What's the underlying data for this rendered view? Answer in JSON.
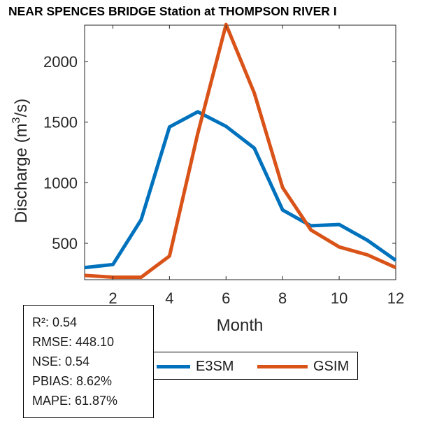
{
  "chart_data": {
    "type": "line",
    "title": "NEAR SPENCES BRIDGE  Station at  THOMPSON RIVER  I",
    "xlabel": "Month",
    "ylabel_main": "Discharge (m",
    "ylabel_sup": "3",
    "ylabel_tail": "/s)",
    "xlim": [
      1,
      12
    ],
    "ylim": [
      200,
      2300
    ],
    "xticks": [
      2,
      4,
      6,
      8,
      10,
      12
    ],
    "yticks": [
      500,
      1000,
      1500,
      2000
    ],
    "x": [
      1,
      2,
      3,
      4,
      5,
      6,
      7,
      8,
      9,
      10,
      11,
      12
    ],
    "series": [
      {
        "name": "E3SM",
        "color": "#0072BD",
        "values": [
          300,
          325,
          695,
          1460,
          1585,
          1465,
          1285,
          775,
          645,
          655,
          525,
          360
        ]
      },
      {
        "name": "GSIM",
        "color": "#D95319",
        "values": [
          235,
          220,
          220,
          395,
          1405,
          2305,
          1740,
          960,
          610,
          470,
          405,
          300
        ]
      }
    ],
    "grid": false,
    "legend": "bottom"
  },
  "stats": {
    "r2": "R²: 0.54",
    "rmse": "RMSE: 448.10",
    "nse": "NSE: 0.54",
    "pbias": "PBIAS: 8.62%",
    "mape": "MAPE: 61.87%"
  }
}
